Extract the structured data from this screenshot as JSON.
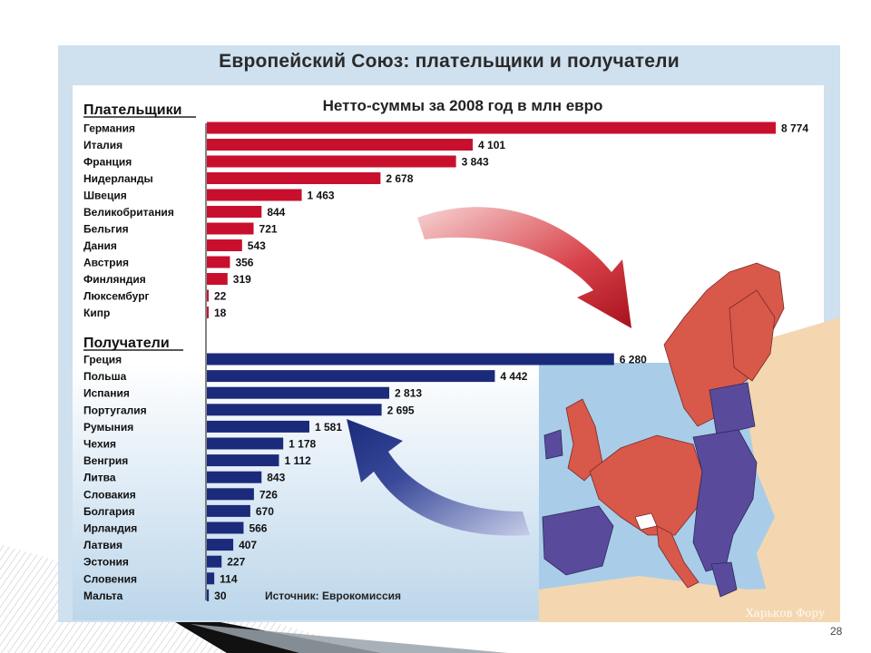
{
  "slide": {
    "title": "Европейский Союз: плательщики и получатели",
    "subtitle": "Нетто-суммы за 2008 год в млн евро",
    "source": "Источник: Еврокомиссия",
    "watermark": "Харьков Фору",
    "page_number": "28"
  },
  "colors": {
    "payers": "#c8102e",
    "recipients": "#1b2a7a",
    "map_payers": "#d8584a",
    "map_recipients": "#5a4a9c",
    "map_other": "#f4d7b0",
    "sea": "#a9cde8"
  },
  "chart_data": [
    {
      "type": "bar",
      "orientation": "horizontal",
      "group_label": "Плательщики",
      "categories": [
        "Германия",
        "Италия",
        "Франция",
        "Нидерланды",
        "Швеция",
        "Великобритания",
        "Бельгия",
        "Дания",
        "Австрия",
        "Финляндия",
        "Люксембург",
        "Кипр"
      ],
      "values": [
        8774,
        4101,
        3843,
        2678,
        1463,
        844,
        721,
        543,
        356,
        319,
        22,
        18
      ],
      "value_labels": [
        "8 774",
        "4 101",
        "3 843",
        "2 678",
        "1 463",
        "844",
        "721",
        "543",
        "356",
        "319",
        "22",
        "18"
      ]
    },
    {
      "type": "bar",
      "orientation": "horizontal",
      "group_label": "Получатели",
      "categories": [
        "Греция",
        "Польша",
        "Испания",
        "Португалия",
        "Румыния",
        "Чехия",
        "Венгрия",
        "Литва",
        "Словакия",
        "Болгария",
        "Ирландия",
        "Латвия",
        "Эстония",
        "Словения",
        "Мальта"
      ],
      "values": [
        6280,
        4442,
        2813,
        2695,
        1581,
        1178,
        1112,
        843,
        726,
        670,
        566,
        407,
        227,
        114,
        30
      ],
      "value_labels": [
        "6 280",
        "4 442",
        "2 813",
        "2 695",
        "1 581",
        "1 178",
        "1 112",
        "843",
        "726",
        "670",
        "566",
        "407",
        "227",
        "114",
        "30"
      ]
    }
  ]
}
